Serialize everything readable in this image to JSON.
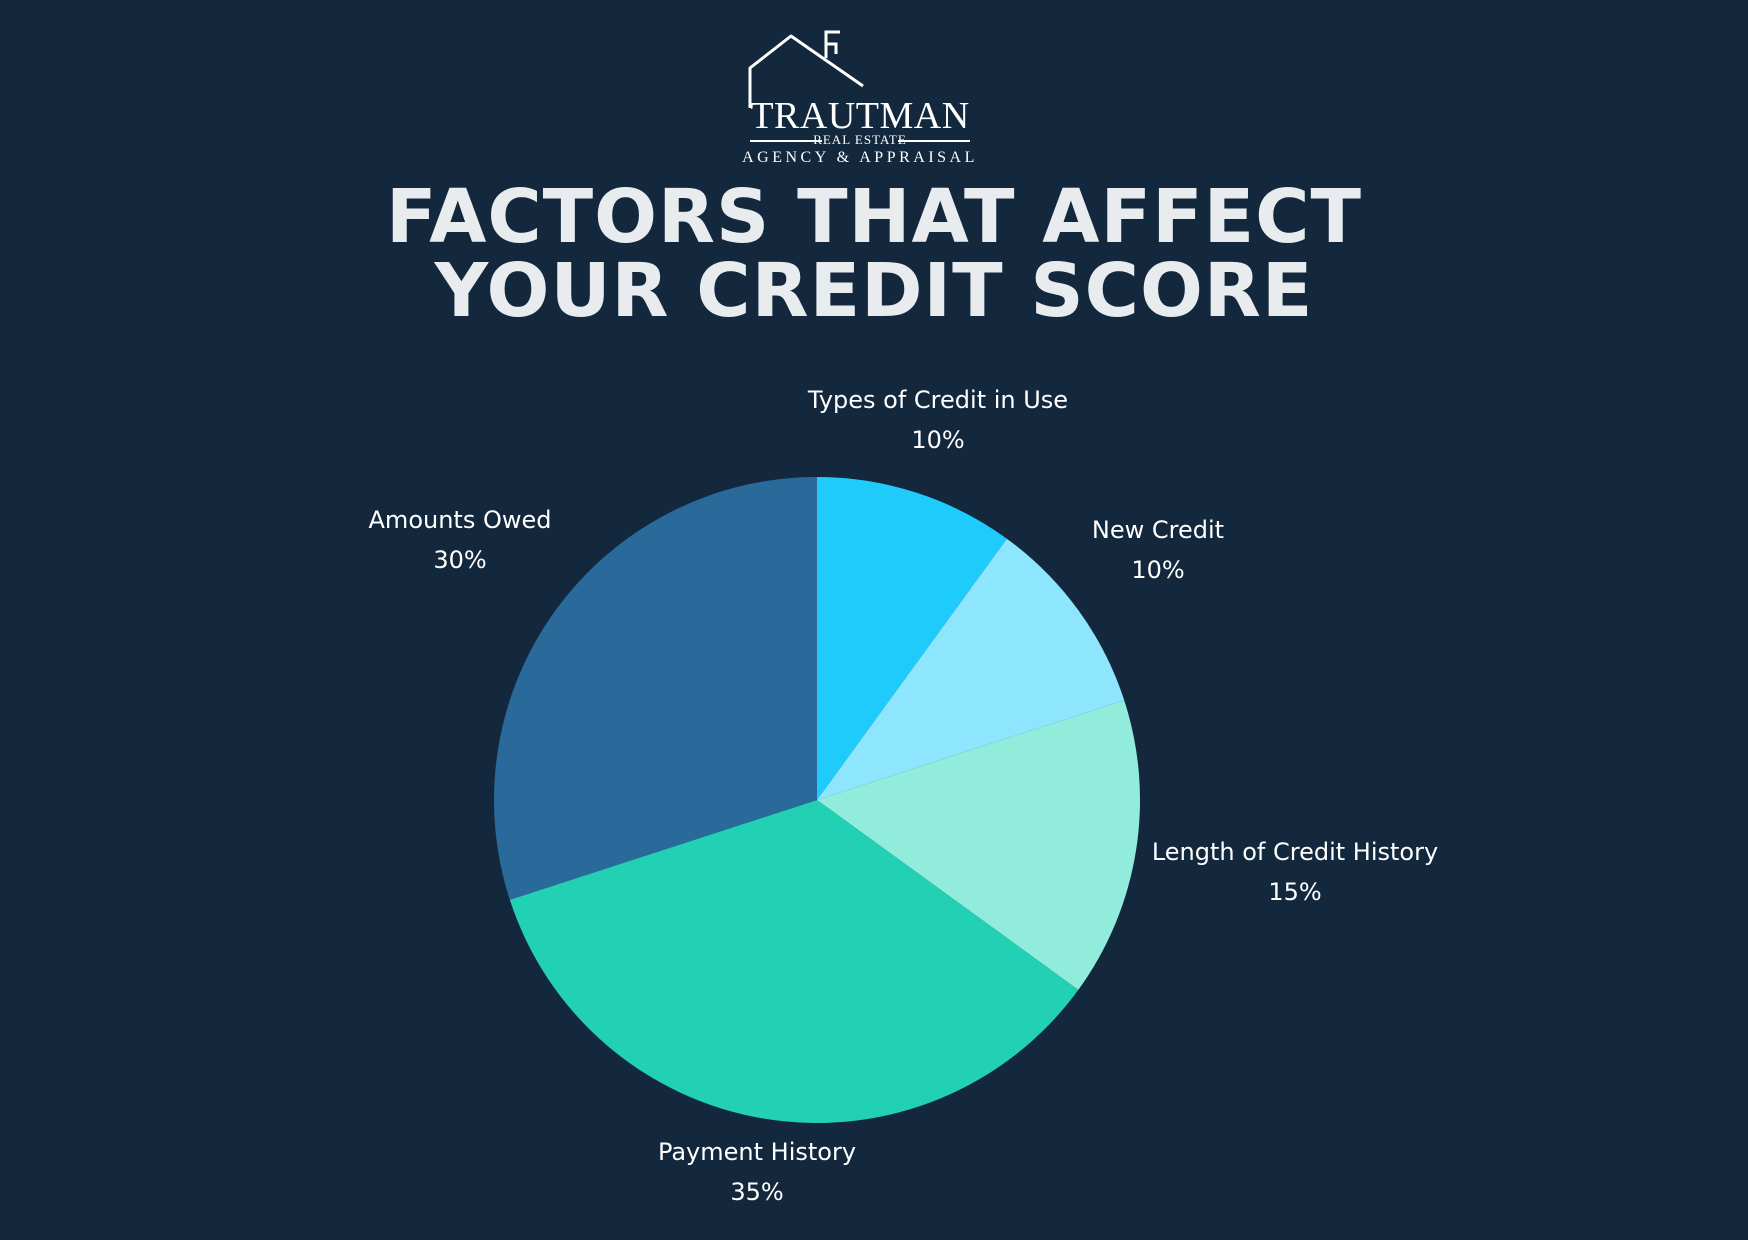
{
  "logo": {
    "brand": "TRAUTMAN",
    "sub": "REAL ESTATE",
    "tagline": "AGENCY & APPRAISAL"
  },
  "title_lines": [
    "FACTORS THAT AFFECT",
    "YOUR CREDIT SCORE"
  ],
  "colors": {
    "background": "#13283d",
    "title": "#e8ecef"
  },
  "chart_data": {
    "type": "pie",
    "title": "FACTORS THAT AFFECT YOUR CREDIT SCORE",
    "start_angle_deg": 0,
    "direction": "clockwise",
    "slices": [
      {
        "label": "Types of Credit in Use",
        "value": 10,
        "value_label": "10%",
        "color": "#1ecbfa"
      },
      {
        "label": "New Credit",
        "value": 10,
        "value_label": "10%",
        "color": "#8de6fd"
      },
      {
        "label": "Length of Credit History",
        "value": 15,
        "value_label": "15%",
        "color": "#91ecdc"
      },
      {
        "label": "Payment History",
        "value": 35,
        "value_label": "35%",
        "color": "#22d0b4"
      },
      {
        "label": "Amounts Owed",
        "value": 30,
        "value_label": "30%",
        "color": "#2a6a9a"
      }
    ]
  }
}
